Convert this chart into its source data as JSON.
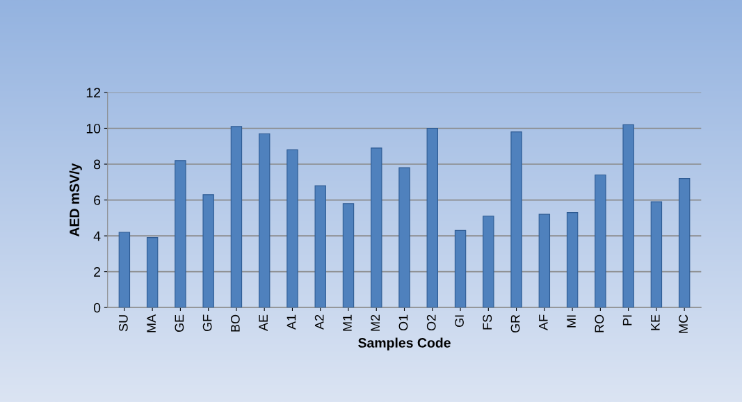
{
  "chart_data": {
    "type": "bar",
    "xlabel": "Samples Code",
    "ylabel": "AED mSV/y",
    "categories": [
      "SU",
      "MA",
      "GE",
      "GF",
      "BO",
      "AE",
      "A1",
      "A2",
      "M1",
      "M2",
      "O1",
      "O2",
      "GI",
      "FS",
      "GR",
      "AF",
      "MI",
      "RO",
      "PI",
      "KE",
      "MC"
    ],
    "values": [
      4.2,
      3.9,
      8.2,
      6.3,
      10.1,
      9.7,
      8.8,
      6.8,
      5.8,
      8.9,
      7.8,
      10.0,
      4.3,
      5.1,
      9.8,
      5.2,
      5.3,
      7.4,
      10.2,
      5.9,
      7.2
    ],
    "color": "#4f81bd",
    "ylim": [
      0,
      12
    ],
    "yticks": [
      0,
      2,
      4,
      6,
      8,
      10,
      12
    ],
    "grid": "y"
  }
}
